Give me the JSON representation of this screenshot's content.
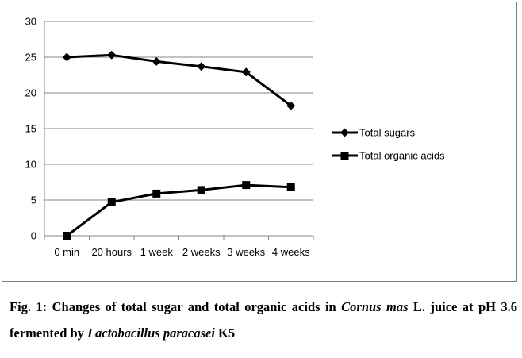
{
  "chart_data": {
    "type": "line",
    "categories": [
      "0 min",
      "20 hours",
      "1 week",
      "2 weeks",
      "3 weeks",
      "4 weeks"
    ],
    "series": [
      {
        "name": "Total sugars",
        "marker": "diamond",
        "color": "#000000",
        "values": [
          25.0,
          25.3,
          24.4,
          23.7,
          22.9,
          18.2
        ]
      },
      {
        "name": "Total organic acids",
        "marker": "square",
        "color": "#000000",
        "values": [
          0.0,
          4.7,
          5.9,
          6.4,
          7.1,
          6.8
        ]
      }
    ],
    "ylim": [
      0,
      30
    ],
    "yticks": [
      0,
      5,
      10,
      15,
      20,
      25,
      30
    ],
    "grid": "horizontal",
    "legend_position": "right",
    "title": "",
    "xlabel": "",
    "ylabel": ""
  },
  "caption": {
    "prefix": "Fig. 1: Changes of total sugar and total organic acids in ",
    "species1": "Cornus mas",
    "mid": " L. juice at pH 3.6 fermented by ",
    "species2": "Lactobacillus paracasei",
    "suffix": " K5"
  }
}
